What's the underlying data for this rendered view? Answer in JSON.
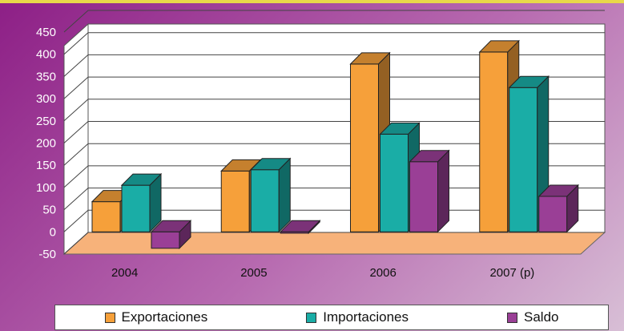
{
  "chart_data": {
    "type": "bar",
    "categories": [
      "2004",
      "2005",
      "2006",
      "2007 (p)"
    ],
    "series": [
      {
        "name": "Exportaciones",
        "color": "#f6a03a",
        "values": [
          68,
          137,
          378,
          405
        ]
      },
      {
        "name": "Importaciones",
        "color": "#1aada6",
        "values": [
          105,
          140,
          220,
          325
        ]
      },
      {
        "name": "Saldo",
        "color": "#9a3f96",
        "values": [
          -37,
          -3,
          158,
          80
        ]
      }
    ],
    "yticks": [
      "450",
      "400",
      "350",
      "300",
      "250",
      "200",
      "150",
      "100",
      "50",
      "0",
      "-50"
    ],
    "ylim": [
      -50,
      450
    ],
    "grid": true,
    "legend_position": "bottom"
  }
}
